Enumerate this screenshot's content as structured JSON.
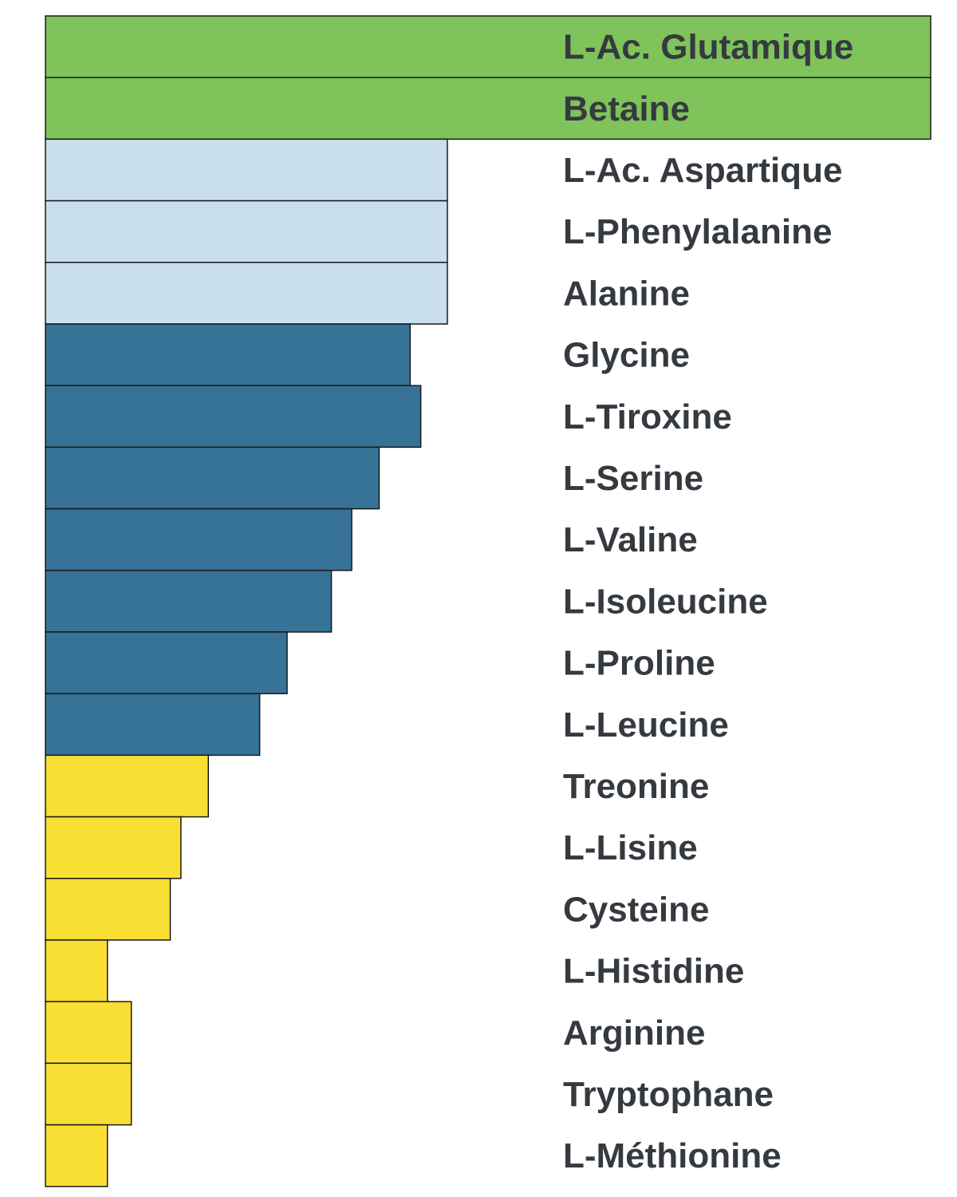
{
  "chart_data": {
    "type": "bar",
    "orientation": "horizontal",
    "categories": [
      "L-Ac. Glutamique",
      "Betaine",
      "L-Ac. Aspartique",
      "L-Phenylalanine",
      "Alanine",
      "Glycine",
      "L-Tiroxine",
      "L-Serine",
      "L-Valine",
      "L-Isoleucine",
      "L-Proline",
      "L-Leucine",
      "Treonine",
      "L-Lisine",
      "Cysteine",
      "L-Histidine",
      "Arginine",
      "Tryptophane",
      "L-Méthionine"
    ],
    "values": [
      100,
      100,
      45.4,
      45.4,
      45.4,
      41.2,
      42.4,
      37.7,
      34.6,
      32.3,
      27.3,
      24.2,
      18.4,
      15.3,
      14.1,
      7.0,
      9.7,
      9.7,
      7.0
    ],
    "groups": [
      0,
      0,
      1,
      1,
      1,
      2,
      2,
      2,
      2,
      2,
      2,
      2,
      3,
      3,
      3,
      3,
      3,
      3,
      3
    ],
    "group_colors": [
      "#7fc35a",
      "#c9dfee",
      "#367396",
      "#f9df33"
    ],
    "xlim": [
      0,
      100
    ],
    "title": "",
    "xlabel": "",
    "ylabel": "",
    "grid": false,
    "legend": "none",
    "label_color": "#353a40"
  }
}
